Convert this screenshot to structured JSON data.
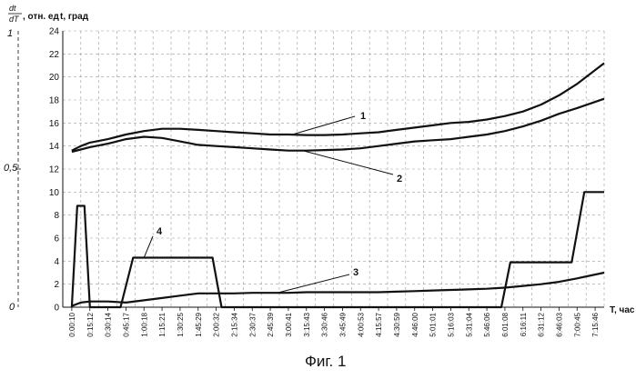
{
  "chart_data": {
    "type": "line",
    "caption": "Фиг. 1",
    "ylabel": "t, град",
    "xlabel": "T, час",
    "left_axis_label": {
      "numerator": "dt",
      "denominator": "dT",
      "suffix": ", отн. ед"
    },
    "left_axis_ticks": [
      "1",
      "0,5",
      "0"
    ],
    "ylim": [
      0,
      24
    ],
    "yticks": [
      0,
      2,
      4,
      6,
      8,
      10,
      12,
      14,
      16,
      18,
      20,
      22,
      24
    ],
    "xticks": [
      "0:00:10",
      "0:15:12",
      "0:30:14",
      "0:45:17",
      "1:00:18",
      "1:15:21",
      "1:30:25",
      "1:45:29",
      "2:00:32",
      "2:15:34",
      "2:30:37",
      "2:45:39",
      "3:00:41",
      "3:15:43",
      "3:30:46",
      "3:45:49",
      "4:00:53",
      "4:15:57",
      "4:30:59",
      "4:46:00",
      "5:01:01",
      "5:16:03",
      "5:31:04",
      "5:46:06",
      "6:01:08",
      "6:16:11",
      "6:31:12",
      "6:46:03",
      "7:00:45",
      "7:15:46"
    ],
    "grid": "dashed",
    "series": [
      {
        "name": "1",
        "x": [
          0,
          0.5,
          1,
          2,
          3,
          4,
          5,
          6,
          7,
          8,
          9,
          10,
          11,
          12,
          13,
          14,
          15,
          16,
          17,
          18,
          19,
          20,
          21,
          22,
          23,
          24,
          25,
          26,
          27,
          28,
          29.5
        ],
        "values": [
          13.6,
          14.0,
          14.3,
          14.6,
          15.0,
          15.3,
          15.5,
          15.5,
          15.4,
          15.3,
          15.2,
          15.1,
          15.0,
          15.0,
          14.95,
          14.95,
          15.0,
          15.1,
          15.2,
          15.4,
          15.6,
          15.8,
          16.0,
          16.1,
          16.3,
          16.6,
          17.0,
          17.6,
          18.4,
          19.4,
          21.2
        ]
      },
      {
        "name": "2",
        "x": [
          0,
          0.5,
          1,
          2,
          3,
          4,
          5,
          6,
          7,
          8,
          9,
          10,
          11,
          12,
          13,
          14,
          15,
          16,
          17,
          18,
          19,
          20,
          21,
          22,
          23,
          24,
          25,
          26,
          27,
          28,
          29.5
        ],
        "values": [
          13.5,
          13.7,
          13.9,
          14.2,
          14.6,
          14.8,
          14.7,
          14.4,
          14.1,
          14.0,
          13.9,
          13.8,
          13.7,
          13.6,
          13.6,
          13.65,
          13.7,
          13.8,
          14.0,
          14.2,
          14.4,
          14.5,
          14.6,
          14.8,
          15.0,
          15.3,
          15.7,
          16.2,
          16.8,
          17.3,
          18.1
        ]
      },
      {
        "name": "3",
        "x": [
          0,
          0.5,
          1,
          2,
          3,
          4,
          5,
          6,
          7,
          8,
          9,
          10,
          11,
          12,
          13,
          14,
          15,
          16,
          17,
          18,
          19,
          20,
          21,
          22,
          23,
          24,
          25,
          26,
          27,
          28,
          29.5
        ],
        "values": [
          0.1,
          0.4,
          0.5,
          0.5,
          0.4,
          0.6,
          0.8,
          1.0,
          1.2,
          1.2,
          1.2,
          1.25,
          1.25,
          1.25,
          1.3,
          1.3,
          1.3,
          1.3,
          1.3,
          1.35,
          1.4,
          1.45,
          1.5,
          1.55,
          1.6,
          1.7,
          1.85,
          2.0,
          2.2,
          2.5,
          3.0
        ]
      },
      {
        "name": "4",
        "x": [
          0,
          0.3,
          0.7,
          1.0,
          1.3,
          2.7,
          3.4,
          7.8,
          8.3,
          23.8,
          24.3,
          27.7,
          28.4,
          29.5
        ],
        "values": [
          0,
          8.8,
          8.8,
          0,
          0,
          0,
          4.3,
          4.3,
          0,
          0,
          3.9,
          3.9,
          10.0,
          10.0
        ]
      }
    ],
    "annotations": [
      {
        "text": "1",
        "series": "1"
      },
      {
        "text": "2",
        "series": "2"
      },
      {
        "text": "3",
        "series": "3"
      },
      {
        "text": "4",
        "series": "4"
      }
    ]
  }
}
